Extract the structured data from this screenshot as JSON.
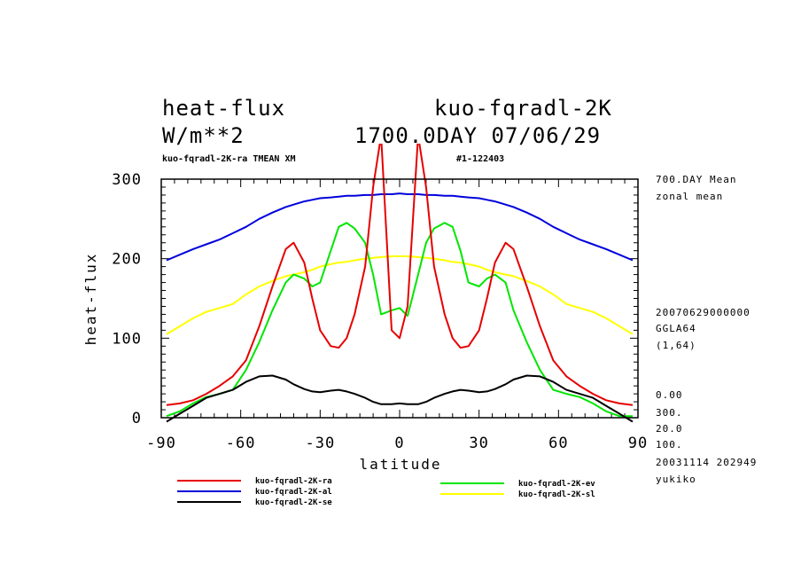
{
  "header": {
    "title_left": "heat-flux",
    "title_right": "kuo-fqradl-2K",
    "unit": "W/m**2",
    "date_line": "1700.0DAY 07/06/29",
    "subtitle_left": "kuo-fqradl-2K-ra TMEAN XM",
    "subtitle_right": "#1-122403"
  },
  "side_info": {
    "mean": "700.DAY Mean",
    "zonal": "zonal mean",
    "stamp": "20070629000000",
    "model": "GGLA64",
    "index": "(1,64)",
    "v1": "0.00",
    "v2": "300.",
    "v3": "20.0",
    "v4": "100.",
    "created": "20031114 202949",
    "user": "yukiko"
  },
  "chart_data": {
    "type": "line",
    "xlabel": "latitude",
    "ylabel": "heat-flux",
    "xlim": [
      -90,
      90
    ],
    "ylim": [
      0,
      300
    ],
    "xticks": [
      "-90",
      "-60",
      "-30",
      "0",
      "30",
      "60",
      "90"
    ],
    "yticks": [
      "0",
      "100",
      "200",
      "300"
    ],
    "x": [
      -88,
      -83,
      -78,
      -73,
      -68,
      -63,
      -58,
      -53,
      -48,
      -43,
      -40,
      -36,
      -33,
      -30,
      -26,
      -23,
      -20,
      -17,
      -13,
      -10,
      -7,
      -3,
      0,
      3,
      7,
      10,
      13,
      17,
      20,
      23,
      26,
      30,
      33,
      36,
      40,
      43,
      48,
      53,
      58,
      63,
      68,
      73,
      78,
      83,
      88
    ],
    "series": [
      {
        "name": "kuo-fqradl-2K-ra",
        "color": "#e60000",
        "values": [
          16,
          18,
          22,
          30,
          40,
          52,
          72,
          115,
          165,
          212,
          220,
          195,
          150,
          110,
          90,
          88,
          100,
          130,
          190,
          290,
          355,
          110,
          100,
          140,
          355,
          290,
          190,
          130,
          100,
          88,
          90,
          110,
          150,
          195,
          220,
          212,
          165,
          115,
          72,
          52,
          40,
          30,
          22,
          18,
          16
        ]
      },
      {
        "name": "kuo-fqradl-2K-al",
        "color": "#0000dc",
        "values": [
          198,
          205,
          212,
          218,
          224,
          232,
          240,
          250,
          258,
          265,
          268,
          272,
          274,
          276,
          277,
          278,
          279,
          279,
          280,
          280,
          281,
          281,
          282,
          281,
          281,
          280,
          280,
          279,
          279,
          278,
          277,
          276,
          274,
          272,
          268,
          265,
          258,
          250,
          240,
          232,
          224,
          218,
          212,
          205,
          198
        ]
      },
      {
        "name": "kuo-fqradl-2K-se",
        "color": "#000000",
        "values": [
          -5,
          5,
          15,
          25,
          30,
          35,
          45,
          52,
          53,
          48,
          42,
          36,
          33,
          32,
          34,
          35,
          33,
          30,
          25,
          20,
          17,
          17,
          18,
          17,
          17,
          20,
          25,
          30,
          33,
          35,
          34,
          32,
          33,
          36,
          42,
          48,
          53,
          52,
          45,
          35,
          30,
          25,
          15,
          5,
          -5
        ]
      },
      {
        "name": "kuo-fqradl-2K-ev",
        "color": "#00e600",
        "values": [
          2,
          8,
          18,
          26,
          30,
          35,
          60,
          95,
          135,
          170,
          180,
          175,
          165,
          170,
          210,
          240,
          245,
          238,
          220,
          180,
          130,
          135,
          138,
          128,
          180,
          220,
          238,
          245,
          240,
          210,
          170,
          165,
          175,
          180,
          170,
          135,
          95,
          60,
          35,
          30,
          26,
          18,
          8,
          2,
          2
        ]
      },
      {
        "name": "kuo-fqradl-2K-sl",
        "color": "#ffff00",
        "values": [
          105,
          115,
          125,
          133,
          138,
          143,
          155,
          165,
          172,
          178,
          180,
          183,
          186,
          190,
          193,
          195,
          196,
          198,
          200,
          201,
          202,
          203,
          203,
          203,
          202,
          201,
          200,
          198,
          196,
          195,
          193,
          190,
          186,
          183,
          180,
          178,
          172,
          165,
          155,
          143,
          138,
          133,
          125,
          115,
          105
        ]
      }
    ]
  }
}
